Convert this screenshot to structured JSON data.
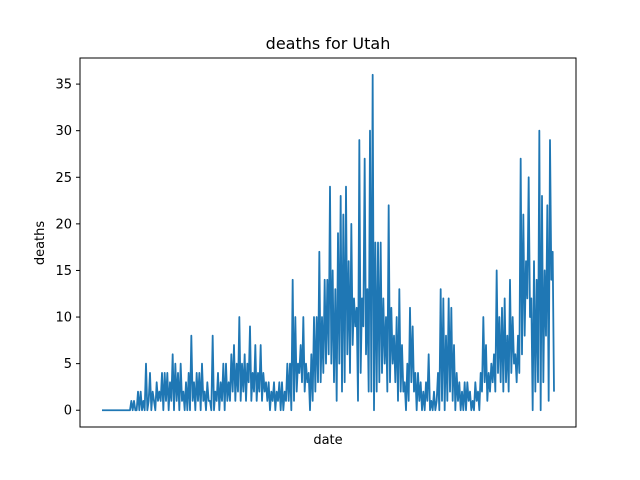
{
  "chart_data": {
    "type": "line",
    "title": "deaths for Utah",
    "xlabel": "date",
    "ylabel": "deaths",
    "ylim": [
      -1.8,
      37.8
    ],
    "yticks": [
      0,
      5,
      10,
      15,
      20,
      25,
      30,
      35
    ],
    "grid": false,
    "legend": "none",
    "series": [
      {
        "color": "#1f77b4",
        "values": [
          0,
          0,
          0,
          0,
          0,
          0,
          0,
          0,
          0,
          0,
          0,
          0,
          0,
          0,
          0,
          0,
          0,
          0,
          0,
          0,
          0,
          0,
          1,
          0,
          1,
          0,
          0,
          2,
          0,
          2,
          0,
          1,
          0,
          5,
          0,
          1,
          4,
          0,
          2,
          1,
          0,
          3,
          1,
          2,
          1,
          4,
          0,
          4,
          1,
          4,
          0,
          3,
          1,
          6,
          0,
          5,
          1,
          4,
          0,
          5,
          1,
          2,
          0,
          3,
          0,
          4,
          0,
          8,
          1,
          3,
          0,
          4,
          1,
          4,
          0,
          5,
          1,
          2,
          0,
          3,
          1,
          1,
          0,
          8,
          0,
          2,
          1,
          4,
          0,
          3,
          1,
          5,
          0,
          5,
          1,
          3,
          1,
          6,
          2,
          7,
          1,
          5,
          2,
          10,
          1,
          5,
          2,
          6,
          1,
          5,
          3,
          9,
          1,
          4,
          2,
          7,
          1,
          4,
          2,
          7,
          1,
          4,
          2,
          3,
          1,
          3,
          0,
          2,
          1,
          3,
          0,
          2,
          1,
          3,
          0,
          3,
          0,
          2,
          1,
          5,
          1,
          5,
          0,
          14,
          1,
          10,
          2,
          5,
          4,
          7,
          3,
          10,
          2,
          5,
          3,
          4,
          0,
          6,
          1,
          10,
          2,
          10,
          3,
          17,
          3,
          10,
          4,
          14,
          5,
          14,
          6,
          24,
          5,
          15,
          3,
          13,
          1,
          19,
          5,
          23,
          2,
          21,
          3,
          24,
          6,
          16,
          4,
          20,
          7,
          12,
          9,
          11,
          1,
          29,
          4,
          12,
          9,
          27,
          6,
          13,
          2,
          30,
          2,
          36,
          0,
          18,
          2,
          18,
          3,
          18,
          4,
          12,
          5,
          10,
          2,
          22,
          3,
          11,
          5,
          8,
          3,
          10,
          1,
          13,
          2,
          7,
          2,
          3,
          0,
          5,
          1,
          11,
          3,
          9,
          2,
          4,
          0,
          4,
          1,
          3,
          0,
          2,
          0,
          3,
          1,
          6,
          0,
          1,
          0,
          2,
          0,
          1,
          4,
          0,
          13,
          1,
          12,
          0,
          8,
          1,
          12,
          2,
          11,
          1,
          7,
          0,
          4,
          1,
          3,
          0,
          2,
          0,
          3,
          0,
          3,
          1,
          2,
          0,
          1,
          0,
          3,
          1,
          2,
          0,
          4,
          2,
          10,
          3,
          7,
          1,
          4,
          2,
          5,
          3,
          6,
          2,
          15,
          4,
          10,
          3,
          11,
          2,
          12,
          3,
          8,
          2,
          14,
          4,
          10,
          5,
          6,
          3,
          8,
          4,
          27,
          6,
          21,
          8,
          16,
          12,
          25,
          10,
          12,
          0,
          16,
          2,
          14,
          3,
          30,
          0,
          23,
          3,
          15,
          8,
          22,
          1,
          29,
          14,
          17,
          2
        ]
      }
    ]
  }
}
